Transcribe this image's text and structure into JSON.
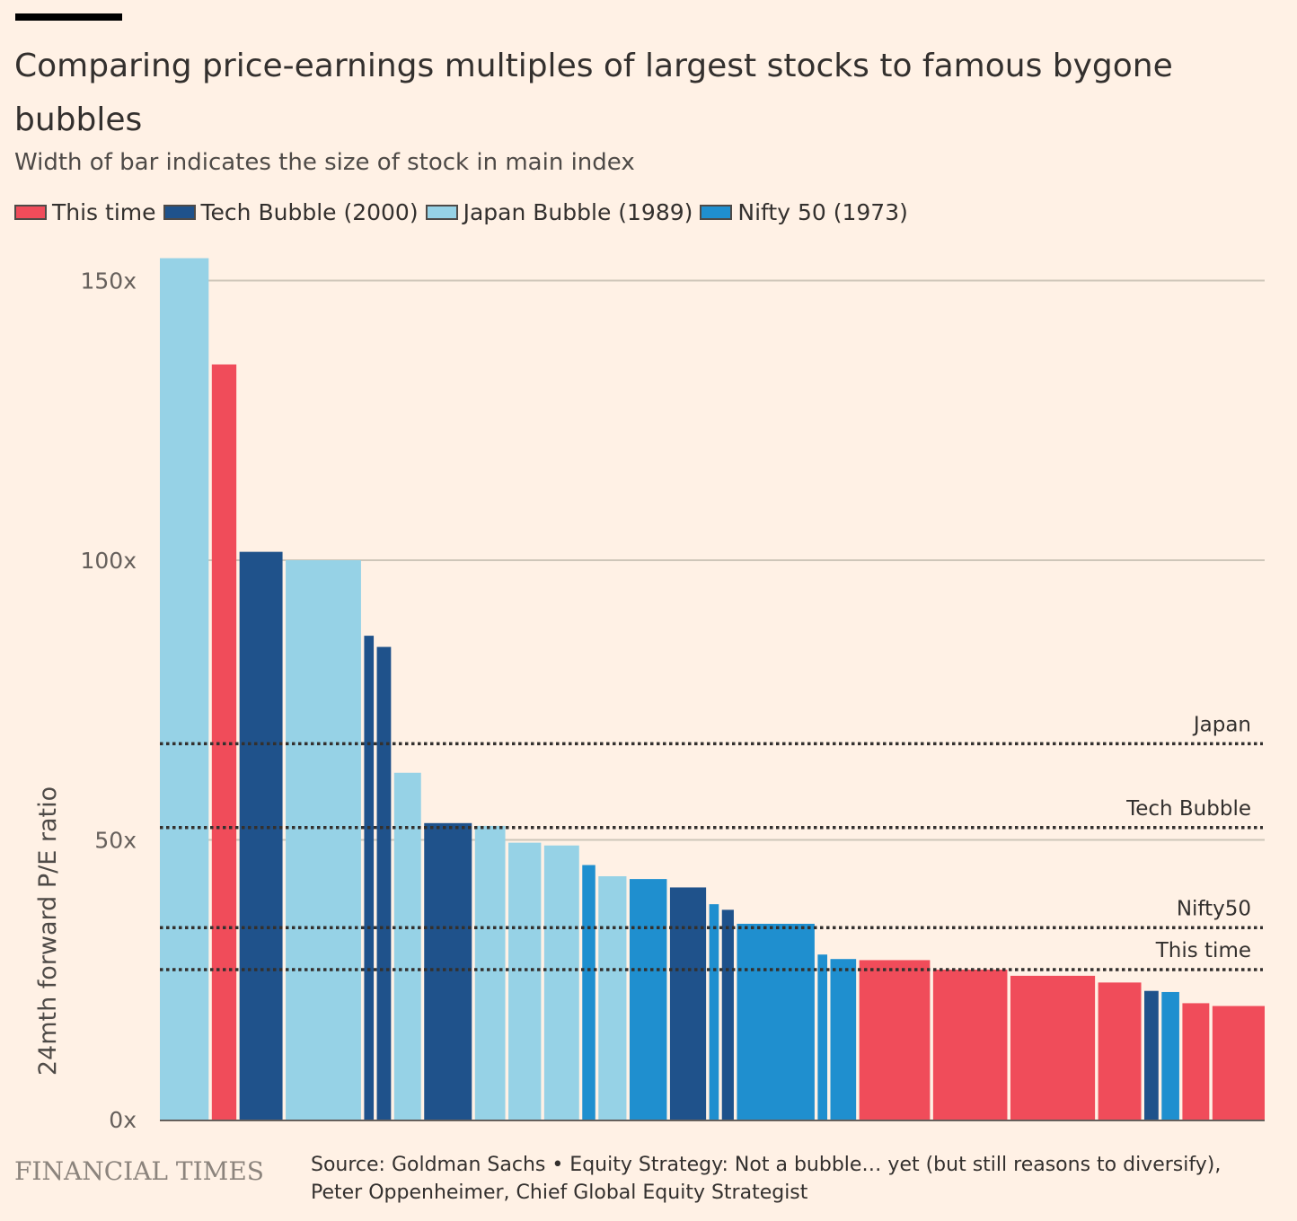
{
  "title": "Comparing price-earnings multiples of largest stocks to famous bygone bubbles",
  "subtitle": "Width of bar indicates the size of stock in main index",
  "legend": [
    {
      "label": "This time",
      "color": "#F04C5A"
    },
    {
      "label": "Tech Bubble (2000)",
      "color": "#1F528B"
    },
    {
      "label": "Japan Bubble (1989)",
      "color": "#96D2E6"
    },
    {
      "label": "Nifty 50 (1973)",
      "color": "#1F8FCF"
    }
  ],
  "footer": {
    "logo": "FINANCIAL TIMES",
    "source": "Source: Goldman Sachs • Equity Strategy: Not a bubble… yet (but still reasons to diversify), Peter Oppenheimer, Chief Global Equity Strategist"
  },
  "chart_data": {
    "type": "bar",
    "ylabel": "24mth forward P/E ratio",
    "ylim": [
      0,
      150
    ],
    "yticks": [
      {
        "value": 0,
        "label": "0x"
      },
      {
        "value": 50,
        "label": "50x"
      },
      {
        "value": 100,
        "label": "100x"
      },
      {
        "value": 150,
        "label": "150x"
      }
    ],
    "colors": {
      "This time": "#F04C5A",
      "Tech Bubble": "#1F528B",
      "Japan": "#96D2E6",
      "Nifty 50": "#1F8FCF"
    },
    "bars": [
      {
        "group": "Japan",
        "value": 154,
        "weight": 4.5
      },
      {
        "group": "This time",
        "value": 135,
        "weight": 2.4
      },
      {
        "group": "Tech Bubble",
        "value": 101.5,
        "weight": 4.0
      },
      {
        "group": "Japan",
        "value": 100,
        "weight": 6.8
      },
      {
        "group": "Tech Bubble",
        "value": 86.5,
        "weight": 1.1
      },
      {
        "group": "Tech Bubble",
        "value": 84.5,
        "weight": 1.5
      },
      {
        "group": "Japan",
        "value": 62,
        "weight": 2.6
      },
      {
        "group": "Tech Bubble",
        "value": 53,
        "weight": 4.4
      },
      {
        "group": "Japan",
        "value": 52.5,
        "weight": 2.9
      },
      {
        "group": "Japan",
        "value": 49.5,
        "weight": 3.1
      },
      {
        "group": "Japan",
        "value": 49,
        "weight": 3.3
      },
      {
        "group": "Nifty 50",
        "value": 45.5,
        "weight": 1.4
      },
      {
        "group": "Japan",
        "value": 43.5,
        "weight": 2.7
      },
      {
        "group": "Nifty 50",
        "value": 43,
        "weight": 3.5
      },
      {
        "group": "Tech Bubble",
        "value": 41.5,
        "weight": 3.4
      },
      {
        "group": "Nifty 50",
        "value": 38.5,
        "weight": 1.1
      },
      {
        "group": "Tech Bubble",
        "value": 37.5,
        "weight": 1.3
      },
      {
        "group": "Nifty 50",
        "value": 35,
        "weight": 7.0
      },
      {
        "group": "Nifty 50",
        "value": 29.5,
        "weight": 1.1
      },
      {
        "group": "Nifty 50",
        "value": 28.7,
        "weight": 2.5
      },
      {
        "group": "This time",
        "value": 28.5,
        "weight": 6.4
      },
      {
        "group": "This time",
        "value": 26.8,
        "weight": 6.7
      },
      {
        "group": "This time",
        "value": 25.7,
        "weight": 7.6
      },
      {
        "group": "This time",
        "value": 24.5,
        "weight": 4.0
      },
      {
        "group": "Tech Bubble",
        "value": 23,
        "weight": 1.5
      },
      {
        "group": "Nifty 50",
        "value": 22.8,
        "weight": 1.8
      },
      {
        "group": "This time",
        "value": 20.8,
        "weight": 2.6
      },
      {
        "group": "This time",
        "value": 20.3,
        "weight": 4.8
      }
    ],
    "reference_lines": [
      {
        "label": "Japan",
        "value": 67.2
      },
      {
        "label": "Tech Bubble",
        "value": 52.2
      },
      {
        "label": "Nifty50",
        "value": 34.3
      },
      {
        "label": "This time",
        "value": 26.8
      }
    ]
  }
}
